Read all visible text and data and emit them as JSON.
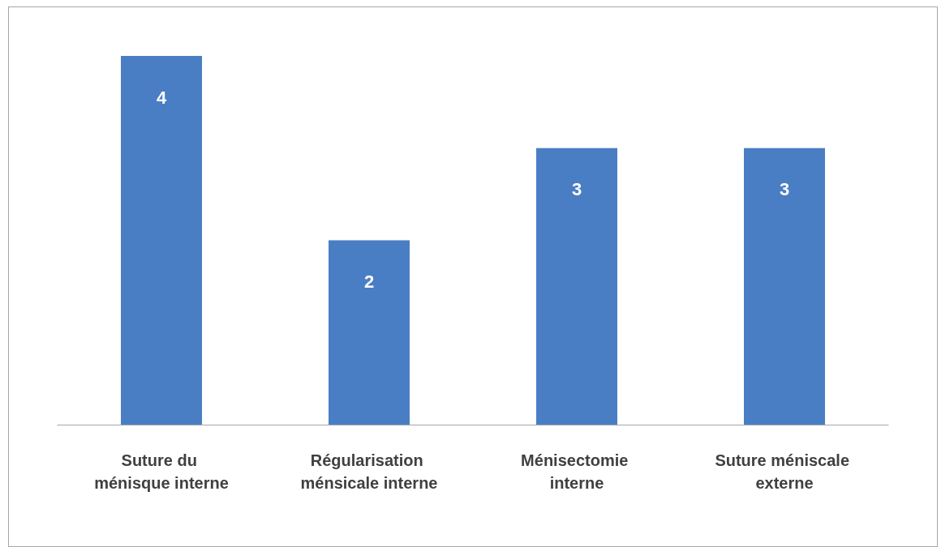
{
  "chart_data": {
    "type": "bar",
    "categories": [
      "Suture du ménisque interne",
      "Régularisation ménsicale interne",
      "Ménisectomie interne",
      "Suture méniscale externe"
    ],
    "values": [
      4,
      2,
      3,
      3
    ],
    "color": "#4a7ec4",
    "data_labels": true
  }
}
